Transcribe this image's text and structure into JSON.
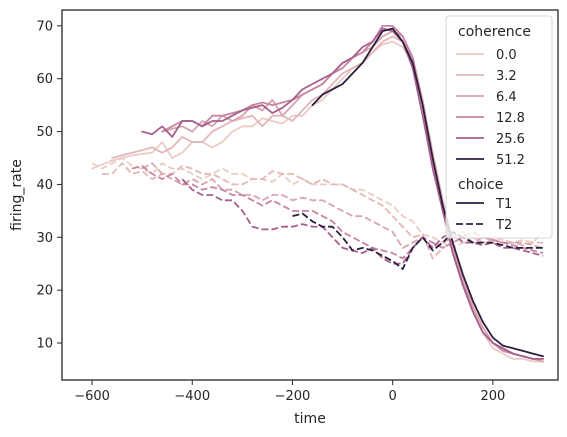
{
  "chart_data": {
    "type": "line",
    "xlabel": "time",
    "ylabel": "firing_rate",
    "xlim": [
      -660,
      330
    ],
    "ylim": [
      3,
      73
    ],
    "xticks": [
      -600,
      -400,
      -200,
      0,
      200
    ],
    "xtick_labels": [
      "−600",
      "−400",
      "−200",
      "0",
      "200"
    ],
    "yticks": [
      10,
      20,
      30,
      40,
      50,
      60,
      70
    ],
    "ytick_labels": [
      "10",
      "20",
      "30",
      "40",
      "50",
      "60",
      "70"
    ],
    "grid": false,
    "legend": {
      "position": "top-right",
      "hue_title": "coherence",
      "hue_entries": [
        {
          "label": "0.0",
          "color": "#ebcbc5"
        },
        {
          "label": "3.2",
          "color": "#e3b7b7"
        },
        {
          "label": "6.4",
          "color": "#d9a4ac"
        },
        {
          "label": "12.8",
          "color": "#c884a1"
        },
        {
          "label": "25.6",
          "color": "#a6608f"
        },
        {
          "label": "51.2",
          "color": "#2d1e3e"
        }
      ],
      "style_title": "choice",
      "style_entries": [
        {
          "label": "T1",
          "dash": "solid"
        },
        {
          "label": "T2",
          "dash": "dashed"
        }
      ]
    },
    "series": [
      {
        "coherence": "0.0",
        "choice": "T1",
        "x": [
          -600,
          -560,
          -520,
          -480,
          -460,
          -440,
          -420,
          -400,
          -380,
          -360,
          -340,
          -320,
          -300,
          -280,
          -260,
          -240,
          -220,
          -200,
          -180,
          -160,
          -140,
          -120,
          -100,
          -80,
          -60,
          -40,
          -20,
          0,
          20,
          40,
          60,
          80,
          100,
          120,
          140,
          160,
          180,
          200,
          220,
          240,
          260,
          280,
          300
        ],
        "y": [
          43,
          44.5,
          45.5,
          46,
          48,
          45,
          46,
          48,
          48,
          47,
          48,
          50,
          51,
          51,
          52.5,
          52,
          51.5,
          53,
          53,
          55,
          56,
          58,
          60,
          62,
          63,
          65,
          66.5,
          67,
          66,
          63,
          55,
          45,
          36,
          28,
          21,
          16,
          12,
          9,
          8,
          7,
          7,
          6.5,
          6.5
        ]
      },
      {
        "coherence": "3.2",
        "choice": "T1",
        "x": [
          -560,
          -540,
          -520,
          -500,
          -480,
          -460,
          -440,
          -420,
          -400,
          -380,
          -360,
          -340,
          -320,
          -300,
          -280,
          -260,
          -240,
          -220,
          -200,
          -180,
          -160,
          -140,
          -120,
          -100,
          -80,
          -60,
          -40,
          -20,
          0,
          20,
          40,
          60,
          80,
          100,
          120,
          140,
          160,
          180,
          200,
          220,
          240,
          260,
          280,
          300
        ],
        "y": [
          45,
          45.5,
          46,
          46.5,
          47,
          46,
          47,
          49,
          48,
          48,
          50,
          51,
          52,
          52.5,
          53,
          51,
          53,
          53,
          52,
          54,
          56,
          57,
          59,
          61,
          62,
          63,
          65,
          67,
          68,
          67,
          64,
          56,
          46,
          37,
          29,
          22,
          17,
          13,
          10,
          9,
          8,
          7.5,
          7,
          6.5
        ]
      },
      {
        "coherence": "6.4",
        "choice": "T1",
        "x": [
          -460,
          -440,
          -420,
          -400,
          -380,
          -360,
          -340,
          -320,
          -300,
          -280,
          -260,
          -240,
          -220,
          -200,
          -180,
          -160,
          -140,
          -120,
          -100,
          -80,
          -60,
          -40,
          -20,
          0,
          20,
          40,
          60,
          80,
          100,
          120,
          140,
          160,
          180,
          200,
          220,
          240,
          260,
          280,
          300
        ],
        "y": [
          50,
          50.5,
          51,
          50,
          52,
          51,
          53,
          52,
          53,
          55,
          54,
          56,
          53,
          55,
          57,
          58,
          59,
          61,
          63,
          64,
          65,
          66,
          68,
          69,
          68,
          64,
          55,
          45,
          36,
          28,
          22,
          17,
          13,
          10,
          9,
          8,
          7.5,
          7,
          6.5
        ]
      },
      {
        "coherence": "12.8",
        "choice": "T1",
        "x": [
          -460,
          -440,
          -420,
          -400,
          -380,
          -360,
          -340,
          -320,
          -300,
          -280,
          -260,
          -240,
          -220,
          -200,
          -180,
          -160,
          -140,
          -120,
          -100,
          -80,
          -60,
          -40,
          -20,
          0,
          20,
          40,
          60,
          80,
          100,
          120,
          140,
          160,
          180,
          200,
          220,
          240,
          260,
          280,
          300
        ],
        "y": [
          50,
          51,
          52,
          52,
          51,
          53,
          53,
          53.5,
          54,
          55,
          55.5,
          55,
          55.5,
          56,
          57,
          58,
          59,
          61,
          62,
          64,
          65,
          67,
          70,
          70,
          68,
          64,
          55,
          44,
          35,
          27,
          21,
          16,
          12,
          10,
          8.5,
          8,
          7.5,
          7,
          7
        ]
      },
      {
        "coherence": "25.6",
        "choice": "T1",
        "x": [
          -500,
          -480,
          -460,
          -440,
          -420,
          -400,
          -380,
          -360,
          -340,
          -320,
          -300,
          -280,
          -260,
          -240,
          -220,
          -200,
          -180,
          -160,
          -140,
          -120,
          -100,
          -80,
          -60,
          -40,
          -20,
          0,
          20,
          40,
          60,
          80,
          100,
          120,
          140,
          160,
          180,
          200,
          220,
          240,
          260,
          280,
          300
        ],
        "y": [
          50,
          49.5,
          51,
          49,
          52,
          52,
          51,
          52,
          52,
          53,
          54,
          54.5,
          55,
          53.5,
          54.5,
          56,
          58,
          59,
          60,
          61,
          63,
          64,
          66,
          67,
          69.5,
          69,
          67,
          62,
          53,
          43,
          35,
          27,
          21,
          16,
          12,
          10,
          9,
          8,
          7.5,
          7,
          7
        ]
      },
      {
        "coherence": "51.2",
        "choice": "T1",
        "x": [
          -160,
          -140,
          -120,
          -100,
          -80,
          -60,
          -40,
          -20,
          0,
          20,
          40,
          60,
          80,
          100,
          120,
          140,
          160,
          180,
          200,
          220,
          240,
          260,
          280,
          300
        ],
        "y": [
          55,
          57,
          58,
          59,
          61,
          63,
          66,
          69,
          69.5,
          67,
          63,
          55,
          45,
          36,
          29,
          23,
          18,
          14,
          11,
          9.5,
          9,
          8.5,
          8,
          7.5
        ]
      },
      {
        "coherence": "0.0",
        "choice": "T2",
        "x": [
          -600,
          -580,
          -560,
          -540,
          -520,
          -500,
          -480,
          -460,
          -440,
          -420,
          -400,
          -380,
          -360,
          -340,
          -320,
          -300,
          -280,
          -260,
          -240,
          -220,
          -200,
          -180,
          -160,
          -140,
          -120,
          -100,
          -80,
          -60,
          -40,
          -20,
          0,
          20,
          40,
          60,
          80,
          100,
          120,
          140,
          160,
          180,
          200,
          220,
          240,
          260,
          280,
          300
        ],
        "y": [
          44,
          43,
          44,
          45,
          43.5,
          43,
          42,
          44,
          43,
          43,
          42,
          41,
          42,
          43,
          42,
          42,
          41,
          41,
          40.5,
          42,
          40,
          41,
          40,
          40,
          40,
          40,
          39,
          39,
          38,
          37,
          36,
          34,
          33,
          30.5,
          30,
          29,
          28,
          29,
          29,
          30,
          30,
          29.5,
          29,
          29.5,
          29,
          31
        ]
      },
      {
        "coherence": "3.2",
        "choice": "T2",
        "x": [
          -580,
          -560,
          -540,
          -520,
          -500,
          -480,
          -460,
          -440,
          -420,
          -400,
          -380,
          -360,
          -340,
          -320,
          -300,
          -280,
          -260,
          -240,
          -220,
          -200,
          -180,
          -160,
          -140,
          -120,
          -100,
          -80,
          -60,
          -40,
          -20,
          0,
          20,
          40,
          60,
          80,
          100,
          120,
          140,
          160,
          180,
          200,
          220,
          240,
          260,
          280,
          300
        ],
        "y": [
          42,
          42,
          44,
          42,
          42.5,
          41,
          42,
          42,
          43.5,
          43,
          42,
          42,
          41,
          40,
          40,
          41,
          41,
          42.5,
          42,
          42,
          41,
          40,
          41,
          40,
          40,
          39,
          38,
          37,
          36,
          34,
          32,
          30,
          30.5,
          26,
          28,
          29,
          30,
          30,
          29,
          29.5,
          29,
          29,
          28.5,
          29,
          29
        ]
      },
      {
        "coherence": "6.4",
        "choice": "T2",
        "x": [
          -500,
          -480,
          -460,
          -440,
          -420,
          -400,
          -380,
          -360,
          -340,
          -320,
          -300,
          -280,
          -260,
          -240,
          -220,
          -200,
          -180,
          -160,
          -140,
          -120,
          -100,
          -80,
          -60,
          -40,
          -20,
          0,
          20,
          40,
          60,
          80,
          100,
          120,
          140,
          160,
          180,
          200,
          220,
          240,
          260,
          280,
          300
        ],
        "y": [
          43,
          44,
          42,
          41,
          40,
          41,
          40,
          41,
          39,
          39,
          38,
          38,
          37,
          38,
          38,
          37,
          37.5,
          37,
          37,
          36,
          35,
          34,
          34,
          33,
          32,
          31,
          28,
          29,
          30,
          28,
          29,
          30,
          31,
          29,
          30,
          29.5,
          29,
          29,
          29,
          28.5,
          28
        ]
      },
      {
        "coherence": "12.8",
        "choice": "T2",
        "x": [
          -520,
          -500,
          -480,
          -460,
          -440,
          -420,
          -400,
          -380,
          -360,
          -340,
          -320,
          -300,
          -280,
          -260,
          -240,
          -220,
          -200,
          -180,
          -160,
          -140,
          -120,
          -100,
          -80,
          -60,
          -40,
          -20,
          0,
          20,
          40,
          60,
          80,
          100,
          120,
          140,
          160,
          180,
          200,
          220,
          240,
          260,
          280,
          300
        ],
        "y": [
          43,
          43.5,
          42,
          41,
          42,
          40,
          40,
          39,
          39.5,
          39,
          38,
          38,
          37,
          36,
          37,
          36,
          35,
          35,
          35,
          34,
          33,
          31,
          30,
          29,
          28,
          27.5,
          27,
          26,
          28,
          30,
          29,
          28,
          29,
          30,
          31,
          30,
          29.5,
          29,
          28.5,
          28,
          27.5,
          27
        ]
      },
      {
        "coherence": "25.6",
        "choice": "T2",
        "x": [
          -420,
          -400,
          -380,
          -360,
          -340,
          -320,
          -300,
          -280,
          -260,
          -240,
          -220,
          -200,
          -180,
          -160,
          -140,
          -120,
          -100,
          -80,
          -60,
          -40,
          -20,
          0,
          20,
          40,
          60,
          80,
          100,
          120,
          140,
          160,
          180,
          200,
          220,
          240,
          260,
          280,
          300
        ],
        "y": [
          41,
          39,
          38,
          38,
          37,
          37,
          35,
          32,
          31.5,
          31.5,
          32,
          32,
          32.5,
          32,
          32,
          30,
          28,
          27.5,
          27,
          28,
          26,
          25,
          25,
          28,
          30,
          28,
          30,
          31,
          29,
          29,
          28.5,
          29,
          28,
          28,
          27.5,
          27,
          26.5
        ]
      },
      {
        "coherence": "51.2",
        "choice": "T2",
        "x": [
          -200,
          -180,
          -160,
          -140,
          -120,
          -100,
          -80,
          -60,
          -40,
          -20,
          0,
          20,
          40,
          60,
          80,
          100,
          120,
          140,
          160,
          180,
          200,
          220,
          240,
          260,
          280,
          300
        ],
        "y": [
          34,
          34.5,
          33,
          32,
          32,
          30,
          27.5,
          28,
          27.5,
          26.5,
          25.5,
          24,
          28,
          30,
          27.5,
          29,
          31,
          30,
          29,
          29,
          29,
          28.5,
          28,
          28,
          28,
          28
        ]
      }
    ]
  }
}
